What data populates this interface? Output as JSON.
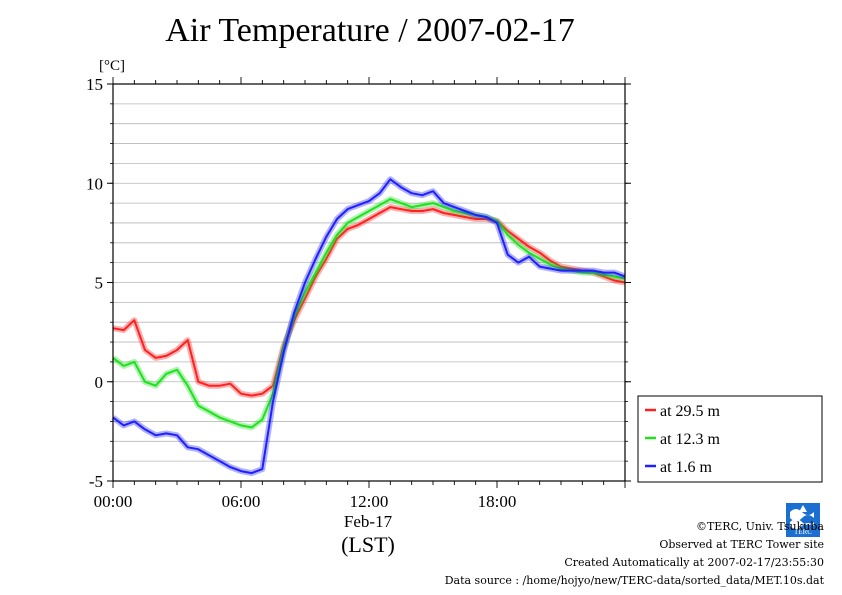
{
  "chart_data": {
    "type": "line",
    "title": "Air Temperature / 2007-02-17",
    "ylabel": "[°C]",
    "xlabel": "Feb-17",
    "xunit_label": "(LST)",
    "ylim": [
      -5,
      15
    ],
    "yticks": [
      "15",
      "10",
      "5",
      "0",
      "-5"
    ],
    "xlim": [
      0,
      24
    ],
    "xticks": [
      "00:00",
      "06:00",
      "12:00",
      "18:00"
    ],
    "grid": true,
    "legend_position": "right",
    "x": [
      0,
      0.5,
      1,
      1.5,
      2,
      2.5,
      3,
      3.5,
      4,
      4.5,
      5,
      5.5,
      6,
      6.5,
      7,
      7.5,
      8,
      8.5,
      9,
      9.5,
      10,
      10.5,
      11,
      11.5,
      12,
      12.5,
      13,
      13.5,
      14,
      14.5,
      15,
      15.5,
      16,
      16.5,
      17,
      17.5,
      18,
      18.5,
      19,
      19.5,
      20,
      20.5,
      21,
      21.5,
      22,
      22.5,
      23,
      23.5,
      24
    ],
    "series": [
      {
        "name": "at 29.5 m",
        "color": "#ff2020",
        "values": [
          2.7,
          2.6,
          3.1,
          1.6,
          1.2,
          1.3,
          1.6,
          2.1,
          0.0,
          -0.2,
          -0.2,
          -0.1,
          -0.6,
          -0.7,
          -0.6,
          -0.2,
          1.8,
          3.1,
          4.2,
          5.3,
          6.2,
          7.2,
          7.7,
          7.9,
          8.2,
          8.5,
          8.8,
          8.7,
          8.6,
          8.6,
          8.7,
          8.5,
          8.4,
          8.3,
          8.2,
          8.2,
          8.1,
          7.6,
          7.2,
          6.8,
          6.5,
          6.1,
          5.8,
          5.7,
          5.6,
          5.5,
          5.3,
          5.1,
          5.0
        ]
      },
      {
        "name": "at 12.3 m",
        "color": "#20e020",
        "values": [
          1.2,
          0.8,
          1.0,
          0.0,
          -0.2,
          0.4,
          0.6,
          -0.2,
          -1.2,
          -1.5,
          -1.8,
          -2.0,
          -2.2,
          -2.3,
          -1.9,
          -0.6,
          1.7,
          3.3,
          4.5,
          5.5,
          6.5,
          7.4,
          8.0,
          8.3,
          8.6,
          8.9,
          9.2,
          9.0,
          8.8,
          8.9,
          9.0,
          8.8,
          8.6,
          8.5,
          8.4,
          8.3,
          8.1,
          7.4,
          6.9,
          6.5,
          6.2,
          5.9,
          5.7,
          5.6,
          5.5,
          5.5,
          5.4,
          5.3,
          5.2
        ]
      },
      {
        "name": "at 1.6 m",
        "color": "#2020ff",
        "values": [
          -1.8,
          -2.2,
          -2.0,
          -2.4,
          -2.7,
          -2.6,
          -2.7,
          -3.3,
          -3.4,
          -3.7,
          -4.0,
          -4.3,
          -4.5,
          -4.6,
          -4.4,
          -1.0,
          1.5,
          3.5,
          5.0,
          6.2,
          7.3,
          8.2,
          8.7,
          8.9,
          9.1,
          9.5,
          10.2,
          9.8,
          9.5,
          9.4,
          9.6,
          9.0,
          8.8,
          8.6,
          8.4,
          8.3,
          8.0,
          6.4,
          6.0,
          6.3,
          5.8,
          5.7,
          5.6,
          5.6,
          5.6,
          5.6,
          5.5,
          5.5,
          5.3
        ]
      }
    ]
  },
  "footer": {
    "copyright": "©TERC, Univ. Tsukuba",
    "observed": "Observed at TERC Tower site",
    "created": "Created Automatically at 2007-02-17/23:55:30",
    "source": "Data source : /home/hojyo/new/TERC-data/sorted_data/MET.10s.dat"
  },
  "logo": {
    "text": "TERC",
    "color": "#1a6fd0"
  }
}
